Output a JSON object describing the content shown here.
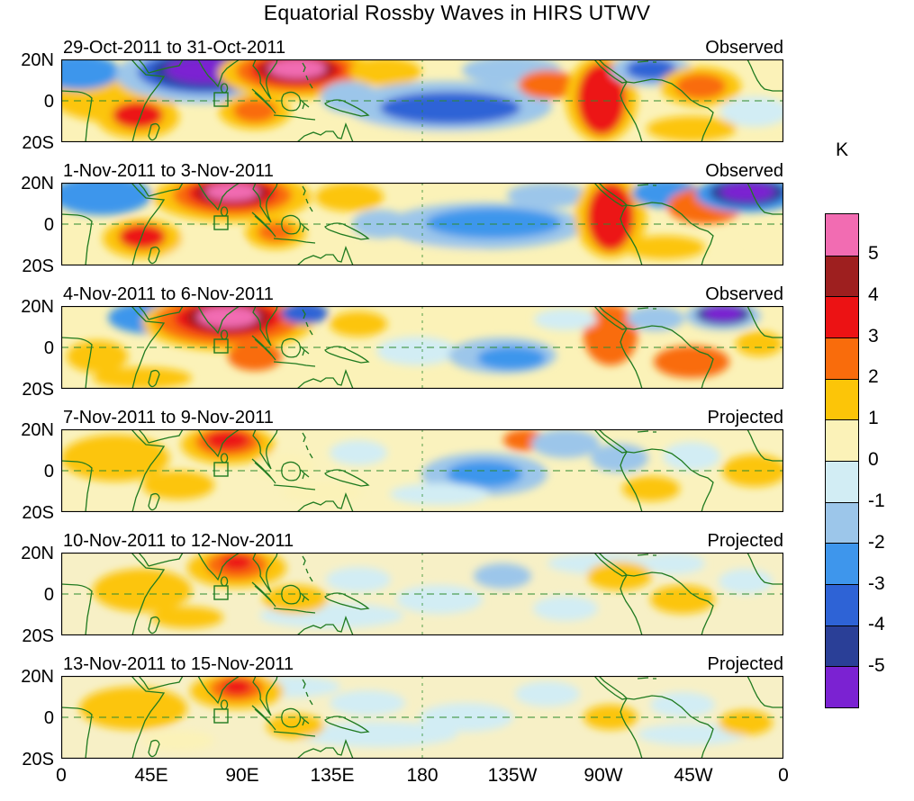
{
  "title": "Equatorial Rossby Waves in HIRS UTWV",
  "chart_data": {
    "type": "heatmap",
    "subtype": "filled-contour anomaly maps, 6-panel time sequence",
    "title": "Equatorial Rossby Waves in HIRS UTWV",
    "units": "K",
    "lat_ticks": [
      "20N",
      "0",
      "20S"
    ],
    "lon_ticks": [
      "0",
      "45E",
      "90E",
      "135E",
      "180",
      "135W",
      "90W",
      "45W",
      "0"
    ],
    "lat_range_deg": [
      -20,
      20
    ],
    "lon_range_deg": [
      0,
      360
    ],
    "colorbar": {
      "label": "K",
      "tick_labels": [
        "5",
        "4",
        "3",
        "2",
        "1",
        "0",
        "-1",
        "-2",
        "-3",
        "-4",
        "-5"
      ],
      "levels": [
        5,
        4,
        3,
        2,
        1,
        0,
        -1,
        -2,
        -3,
        -4,
        -5
      ],
      "colors_top_to_bottom": [
        "#F26CB2",
        "#9E1F1F",
        "#EC1214",
        "#F96C0C",
        "#FCC508",
        "#FBF2B8",
        "#D2EDF4",
        "#9CC6EA",
        "#3E96EC",
        "#2E63D6",
        "#2A3F97",
        "#7B22D2"
      ]
    },
    "map_style": {
      "coast_color": "#1F7A1F",
      "grid_color": "#2E8B2E",
      "frame_color": "#000000",
      "marker_box_lon_deg": [
        76,
        83
      ],
      "marker_box_lat_deg": [
        -3,
        3
      ]
    },
    "panels": [
      {
        "date_range": "29-Oct-2011 to 31-Oct-2011",
        "status": "Observed",
        "base": "#FBF2B8",
        "blobs": [
          [
            60,
            42,
            70,
            28,
            2
          ],
          [
            390,
            78,
            75,
            13,
            1
          ],
          [
            700,
            77,
            50,
            14,
            2
          ],
          [
            770,
            58,
            38,
            17,
            -1
          ],
          [
            500,
            12,
            55,
            16,
            -2
          ],
          [
            20,
            14,
            45,
            20,
            -3
          ],
          [
            160,
            17,
            100,
            32,
            -2
          ],
          [
            160,
            14,
            75,
            24,
            -4
          ],
          [
            160,
            13,
            58,
            19,
            -4.5
          ],
          [
            160,
            12,
            44,
            15,
            -5
          ],
          [
            262,
            15,
            88,
            29,
            2
          ],
          [
            262,
            13,
            68,
            23,
            3
          ],
          [
            262,
            12,
            52,
            17,
            4
          ],
          [
            262,
            11,
            42,
            14,
            4.5
          ],
          [
            262,
            10,
            32,
            11,
            5
          ],
          [
            85,
            64,
            46,
            24,
            2
          ],
          [
            85,
            62,
            28,
            15,
            4
          ],
          [
            215,
            58,
            40,
            20,
            2
          ],
          [
            215,
            57,
            24,
            13,
            3
          ],
          [
            320,
            42,
            32,
            18,
            -2
          ],
          [
            360,
            14,
            40,
            16,
            2
          ],
          [
            430,
            52,
            115,
            28,
            -2
          ],
          [
            432,
            54,
            78,
            18,
            -4
          ],
          [
            540,
            28,
            32,
            16,
            3
          ],
          [
            600,
            44,
            40,
            48,
            2
          ],
          [
            600,
            44,
            27,
            40,
            4
          ],
          [
            655,
            12,
            45,
            18,
            -2
          ],
          [
            655,
            11,
            28,
            12,
            -4
          ],
          [
            710,
            30,
            45,
            22,
            2
          ],
          [
            710,
            30,
            28,
            14,
            3
          ]
        ]
      },
      {
        "date_range": "1-Nov-2011 to 3-Nov-2011",
        "status": "Observed",
        "base": "#FBF2B8",
        "blobs": [
          [
            150,
            72,
            50,
            14,
            1
          ],
          [
            400,
            80,
            70,
            12,
            1
          ],
          [
            670,
            72,
            45,
            13,
            2
          ],
          [
            45,
            14,
            55,
            22,
            -3
          ],
          [
            90,
            62,
            44,
            22,
            2
          ],
          [
            90,
            60,
            26,
            14,
            4
          ],
          [
            190,
            16,
            88,
            28,
            2
          ],
          [
            190,
            14,
            66,
            22,
            3
          ],
          [
            190,
            12,
            50,
            17,
            4
          ],
          [
            190,
            11,
            40,
            13,
            4.5
          ],
          [
            190,
            10,
            30,
            10,
            5
          ],
          [
            238,
            56,
            34,
            18,
            2
          ],
          [
            238,
            55,
            20,
            11,
            3
          ],
          [
            320,
            16,
            38,
            16,
            2
          ],
          [
            355,
            46,
            32,
            16,
            -2
          ],
          [
            470,
            48,
            110,
            26,
            -2
          ],
          [
            480,
            45,
            75,
            17,
            -3
          ],
          [
            540,
            14,
            45,
            14,
            -2
          ],
          [
            610,
            38,
            40,
            46,
            2
          ],
          [
            610,
            38,
            26,
            38,
            4
          ],
          [
            672,
            12,
            38,
            16,
            -3
          ],
          [
            715,
            26,
            42,
            20,
            3
          ],
          [
            762,
            13,
            58,
            20,
            -3
          ],
          [
            762,
            11,
            42,
            15,
            -4.5
          ],
          [
            762,
            10,
            30,
            11,
            -5
          ],
          [
            790,
            60,
            28,
            13,
            1
          ]
        ]
      },
      {
        "date_range": "4-Nov-2011 to 6-Nov-2011",
        "status": "Observed",
        "base": "#FBF2B8",
        "blobs": [
          [
            90,
            80,
            55,
            12,
            2
          ],
          [
            40,
            56,
            34,
            18,
            2
          ],
          [
            100,
            13,
            48,
            18,
            -3
          ],
          [
            185,
            18,
            95,
            32,
            2
          ],
          [
            185,
            16,
            80,
            27,
            3
          ],
          [
            185,
            14,
            60,
            20,
            4
          ],
          [
            185,
            13,
            46,
            16,
            4.5
          ],
          [
            185,
            12,
            34,
            12,
            5
          ],
          [
            270,
            8,
            26,
            12,
            -4
          ],
          [
            215,
            56,
            30,
            16,
            3
          ],
          [
            330,
            20,
            32,
            14,
            2
          ],
          [
            395,
            50,
            45,
            16,
            -1
          ],
          [
            490,
            55,
            60,
            20,
            -2
          ],
          [
            500,
            58,
            38,
            13,
            -3
          ],
          [
            610,
            32,
            30,
            34,
            3
          ],
          [
            660,
            14,
            32,
            14,
            -2
          ],
          [
            735,
            11,
            42,
            16,
            -2
          ],
          [
            735,
            9,
            30,
            12,
            -4.5
          ],
          [
            735,
            8,
            22,
            9,
            -5
          ],
          [
            700,
            62,
            42,
            18,
            3
          ],
          [
            775,
            42,
            26,
            14,
            2
          ],
          [
            430,
            15,
            40,
            13,
            1
          ],
          [
            560,
            15,
            35,
            12,
            -1
          ]
        ]
      },
      {
        "date_range": "7-Nov-2011 to 9-Nov-2011",
        "status": "Projected",
        "base": "#FAF2BE",
        "blobs": [
          [
            60,
            32,
            60,
            26,
            2
          ],
          [
            130,
            62,
            40,
            16,
            2
          ],
          [
            185,
            17,
            52,
            22,
            2
          ],
          [
            185,
            14,
            36,
            16,
            3
          ],
          [
            185,
            12,
            24,
            11,
            4
          ],
          [
            250,
            42,
            32,
            16,
            1
          ],
          [
            330,
            26,
            32,
            14,
            -1
          ],
          [
            470,
            50,
            70,
            24,
            -2
          ],
          [
            470,
            50,
            42,
            15,
            -3
          ],
          [
            515,
            12,
            24,
            12,
            3
          ],
          [
            560,
            16,
            38,
            16,
            -2
          ],
          [
            620,
            32,
            32,
            16,
            -2
          ],
          [
            655,
            66,
            32,
            14,
            2
          ],
          [
            700,
            30,
            32,
            16,
            -1
          ],
          [
            770,
            46,
            36,
            18,
            2
          ],
          [
            420,
            72,
            55,
            12,
            -1
          ],
          [
            290,
            70,
            45,
            12,
            1
          ]
        ]
      },
      {
        "date_range": "10-Nov-2011 to 12-Nov-2011",
        "status": "Projected",
        "base": "#F7F0C6",
        "blobs": [
          [
            300,
            70,
            80,
            14,
            -1
          ],
          [
            600,
            12,
            60,
            12,
            -1
          ],
          [
            90,
            42,
            55,
            24,
            2
          ],
          [
            140,
            72,
            40,
            12,
            2
          ],
          [
            195,
            17,
            55,
            22,
            2
          ],
          [
            195,
            14,
            34,
            16,
            3
          ],
          [
            195,
            11,
            17,
            9,
            4
          ],
          [
            260,
            52,
            36,
            16,
            2
          ],
          [
            330,
            30,
            36,
            14,
            -1
          ],
          [
            420,
            52,
            48,
            16,
            -1
          ],
          [
            490,
            26,
            32,
            14,
            -2
          ],
          [
            560,
            62,
            36,
            14,
            -1
          ],
          [
            620,
            26,
            36,
            16,
            2
          ],
          [
            680,
            12,
            35,
            12,
            -1
          ],
          [
            690,
            52,
            36,
            16,
            2
          ],
          [
            760,
            32,
            30,
            14,
            -1
          ]
        ]
      },
      {
        "date_range": "13-Nov-2011 to 15-Nov-2011",
        "status": "Projected",
        "base": "#F7F0C6",
        "blobs": [
          [
            350,
            65,
            90,
            14,
            -1
          ],
          [
            250,
            12,
            60,
            12,
            -1
          ],
          [
            700,
            65,
            60,
            12,
            -1
          ],
          [
            80,
            36,
            60,
            24,
            2
          ],
          [
            130,
            72,
            40,
            12,
            1
          ],
          [
            195,
            17,
            52,
            20,
            2
          ],
          [
            195,
            14,
            30,
            14,
            3
          ],
          [
            195,
            12,
            16,
            9,
            4
          ],
          [
            260,
            56,
            32,
            14,
            2
          ],
          [
            340,
            30,
            42,
            14,
            -1
          ],
          [
            450,
            46,
            52,
            16,
            -1
          ],
          [
            540,
            20,
            36,
            14,
            -1
          ],
          [
            610,
            46,
            30,
            14,
            2
          ],
          [
            690,
            32,
            36,
            14,
            -1
          ],
          [
            760,
            52,
            30,
            14,
            2
          ]
        ]
      }
    ]
  }
}
